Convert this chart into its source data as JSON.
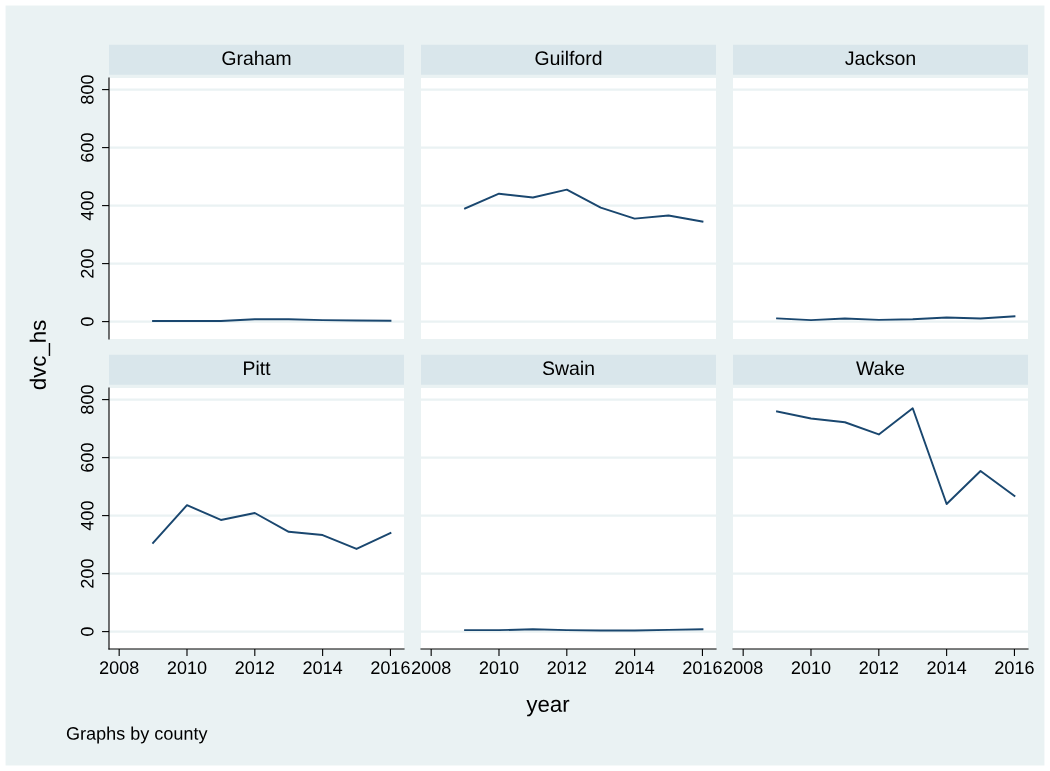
{
  "chart_data": [
    {
      "type": "line",
      "title": "Graham",
      "ylabel": "dvc_hs",
      "x": [
        2009,
        2010,
        2011,
        2012,
        2013,
        2014,
        2015,
        2016
      ],
      "series": [
        {
          "color": "#1a476f",
          "values": [
            2,
            2,
            2,
            8,
            8,
            5,
            4,
            3
          ]
        }
      ],
      "xlim": [
        2007.7,
        2016.4
      ],
      "ylim": [
        -60,
        840
      ],
      "xticks": [
        2008,
        2010,
        2012,
        2014,
        2016
      ],
      "yticks": [
        0,
        200,
        400,
        600,
        800
      ],
      "grid": "y",
      "tick_labels": "y"
    },
    {
      "type": "line",
      "title": "Guilford",
      "x": [
        2009,
        2010,
        2011,
        2012,
        2013,
        2014,
        2015,
        2016
      ],
      "series": [
        {
          "color": "#1a476f",
          "values": [
            390,
            441,
            428,
            455,
            393,
            355,
            366,
            345
          ]
        }
      ],
      "xlim": [
        2007.7,
        2016.4
      ],
      "ylim": [
        -60,
        840
      ],
      "xticks": [
        2008,
        2010,
        2012,
        2014,
        2016
      ],
      "yticks": [
        0,
        200,
        400,
        600,
        800
      ],
      "grid": "y",
      "tick_labels": false
    },
    {
      "type": "line",
      "title": "Jackson",
      "x": [
        2009,
        2010,
        2011,
        2012,
        2013,
        2014,
        2015,
        2016
      ],
      "series": [
        {
          "color": "#1a476f",
          "values": [
            11,
            5,
            11,
            6,
            8,
            14,
            11,
            18
          ]
        }
      ],
      "xlim": [
        2007.7,
        2016.4
      ],
      "ylim": [
        -60,
        840
      ],
      "xticks": [
        2008,
        2010,
        2012,
        2014,
        2016
      ],
      "yticks": [
        0,
        200,
        400,
        600,
        800
      ],
      "grid": "y",
      "tick_labels": false
    },
    {
      "type": "line",
      "title": "Pitt",
      "annotations": [
        "Graphs by county"
      ],
      "x": [
        2009,
        2010,
        2011,
        2012,
        2013,
        2014,
        2015,
        2016
      ],
      "series": [
        {
          "color": "#1a476f",
          "values": [
            306,
            436,
            385,
            409,
            344,
            333,
            285,
            340
          ]
        }
      ],
      "xlim": [
        2007.7,
        2016.4
      ],
      "ylim": [
        -60,
        840
      ],
      "xticks": [
        2008,
        2010,
        2012,
        2014,
        2016
      ],
      "yticks": [
        0,
        200,
        400,
        600,
        800
      ],
      "grid": "y"
    },
    {
      "type": "line",
      "title": "Swain",
      "xlabel": "year",
      "x": [
        2009,
        2010,
        2011,
        2012,
        2013,
        2014,
        2015,
        2016
      ],
      "series": [
        {
          "color": "#1a476f",
          "values": [
            5,
            5,
            8,
            5,
            4,
            4,
            6,
            8
          ]
        }
      ],
      "xlim": [
        2007.7,
        2016.4
      ],
      "ylim": [
        -60,
        840
      ],
      "xticks": [
        2008,
        2010,
        2012,
        2014,
        2016
      ],
      "yticks": [
        0,
        200,
        400,
        600,
        800
      ],
      "grid": "y",
      "tick_labels": "x"
    },
    {
      "type": "line",
      "title": "Wake",
      "x": [
        2009,
        2010,
        2011,
        2012,
        2013,
        2014,
        2015,
        2016
      ],
      "series": [
        {
          "color": "#1a476f",
          "values": [
            759,
            735,
            722,
            680,
            770,
            440,
            554,
            468
          ]
        }
      ],
      "xlim": [
        2007.7,
        2016.4
      ],
      "ylim": [
        -60,
        840
      ],
      "xticks": [
        2008,
        2010,
        2012,
        2014,
        2016
      ],
      "yticks": [
        0,
        200,
        400,
        600,
        800
      ],
      "grid": "y",
      "tick_labels": "x"
    }
  ]
}
